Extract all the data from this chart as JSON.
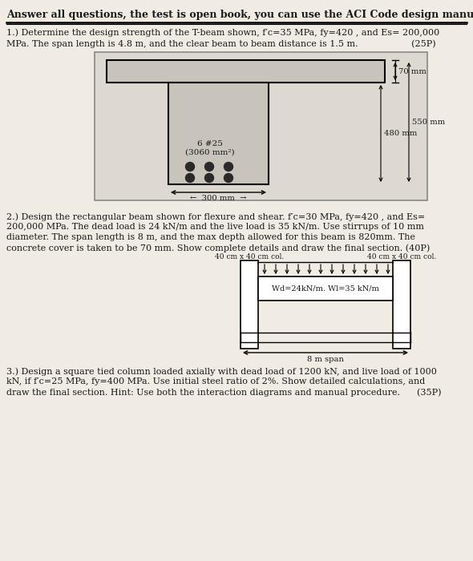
{
  "bg_color": "#f0ece4",
  "text_color": "#1a1a1a",
  "header": "Answer all questions, the test is open book, you can use the ACI Code design manual",
  "q1_line1": "1.) Determine the design strength of the T-beam shown, f′c=35 MPa, fy=420 , and Es= 200,000",
  "q1_line2": "MPa. The span length is 4.8 m, and the clear beam to beam distance is 1.5 m.                   (25P)",
  "q2_line1": "2.) Design the rectangular beam shown for flexure and shear. f′c=30 MPa, fy=420 , and Es=",
  "q2_line2": "200,000 MPa. The dead load is 24 kN/m and the live load is 35 kN/m. Use stirrups of 10 mm",
  "q2_line3": "diameter. The span length is 8 m, and the max depth allowed for this beam is 820mm. The",
  "q2_line4": "concrete cover is taken to be 70 mm. Show complete details and draw the final section. (40P)",
  "q3_line1": "3.) Design a square tied column loaded axially with dead load of 1200 kN, and live load of 1000",
  "q3_line2": "kN, if f′c=25 MPa, fy=400 MPa. Use initial steel ratio of 2%. Show detailed calculations, and",
  "q3_line3": "draw the final section. Hint: Use both the interaction diagrams and manual procedure.      (35P)",
  "beam_fill": "#c8c3bb",
  "beam_bg": "#d6d1c8",
  "rebar_color": "#2a2a2a"
}
